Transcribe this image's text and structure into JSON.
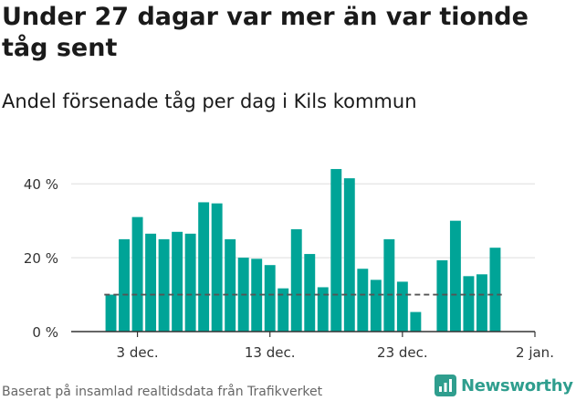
{
  "title": "Under 27 dagar var mer än var tionde tåg sent",
  "subtitle": "Andel försenade tåg per dag i Kils kommun",
  "source": "Baserat på insamlad realtidsdata från Trafikverket",
  "brand": "Newsworthy",
  "colors": {
    "bar": "#00a497",
    "reference": "#555555",
    "grid": "#dddddd",
    "axis": "#333333",
    "brand": "#2f9e8e"
  },
  "chart_data": {
    "type": "bar",
    "x": [
      "2023-12-01",
      "2023-12-02",
      "2023-12-03",
      "2023-12-04",
      "2023-12-05",
      "2023-12-06",
      "2023-12-07",
      "2023-12-08",
      "2023-12-09",
      "2023-12-10",
      "2023-12-11",
      "2023-12-12",
      "2023-12-13",
      "2023-12-14",
      "2023-12-15",
      "2023-12-16",
      "2023-12-17",
      "2023-12-18",
      "2023-12-19",
      "2023-12-20",
      "2023-12-21",
      "2023-12-22",
      "2023-12-23",
      "2023-12-24",
      "2023-12-25",
      "2023-12-26",
      "2023-12-27",
      "2023-12-28",
      "2023-12-29",
      "2023-12-30"
    ],
    "values": [
      10,
      25,
      31,
      26.5,
      25,
      27,
      26.5,
      35,
      34.7,
      25,
      20,
      19.7,
      18,
      11.7,
      27.7,
      21,
      12,
      44,
      41.5,
      17,
      14,
      25,
      13.5,
      5.3,
      null,
      19.3,
      30,
      15,
      15.5,
      22.7
    ],
    "reference_line": {
      "value": 10,
      "style": "dashed"
    },
    "yticks": [
      0,
      20,
      40
    ],
    "ytick_labels": [
      "0 %",
      "20 %",
      "40 %"
    ],
    "ylim": [
      0,
      45
    ],
    "xticks": [
      "2023-12-03",
      "2023-12-13",
      "2023-12-23",
      "2024-01-02"
    ],
    "xtick_labels": [
      "3 dec.",
      "13 dec.",
      "23 dec.",
      "2 jan."
    ],
    "xlim": [
      "2023-11-28",
      "2024-01-02"
    ],
    "grid": true,
    "xlabel": "",
    "ylabel": ""
  }
}
